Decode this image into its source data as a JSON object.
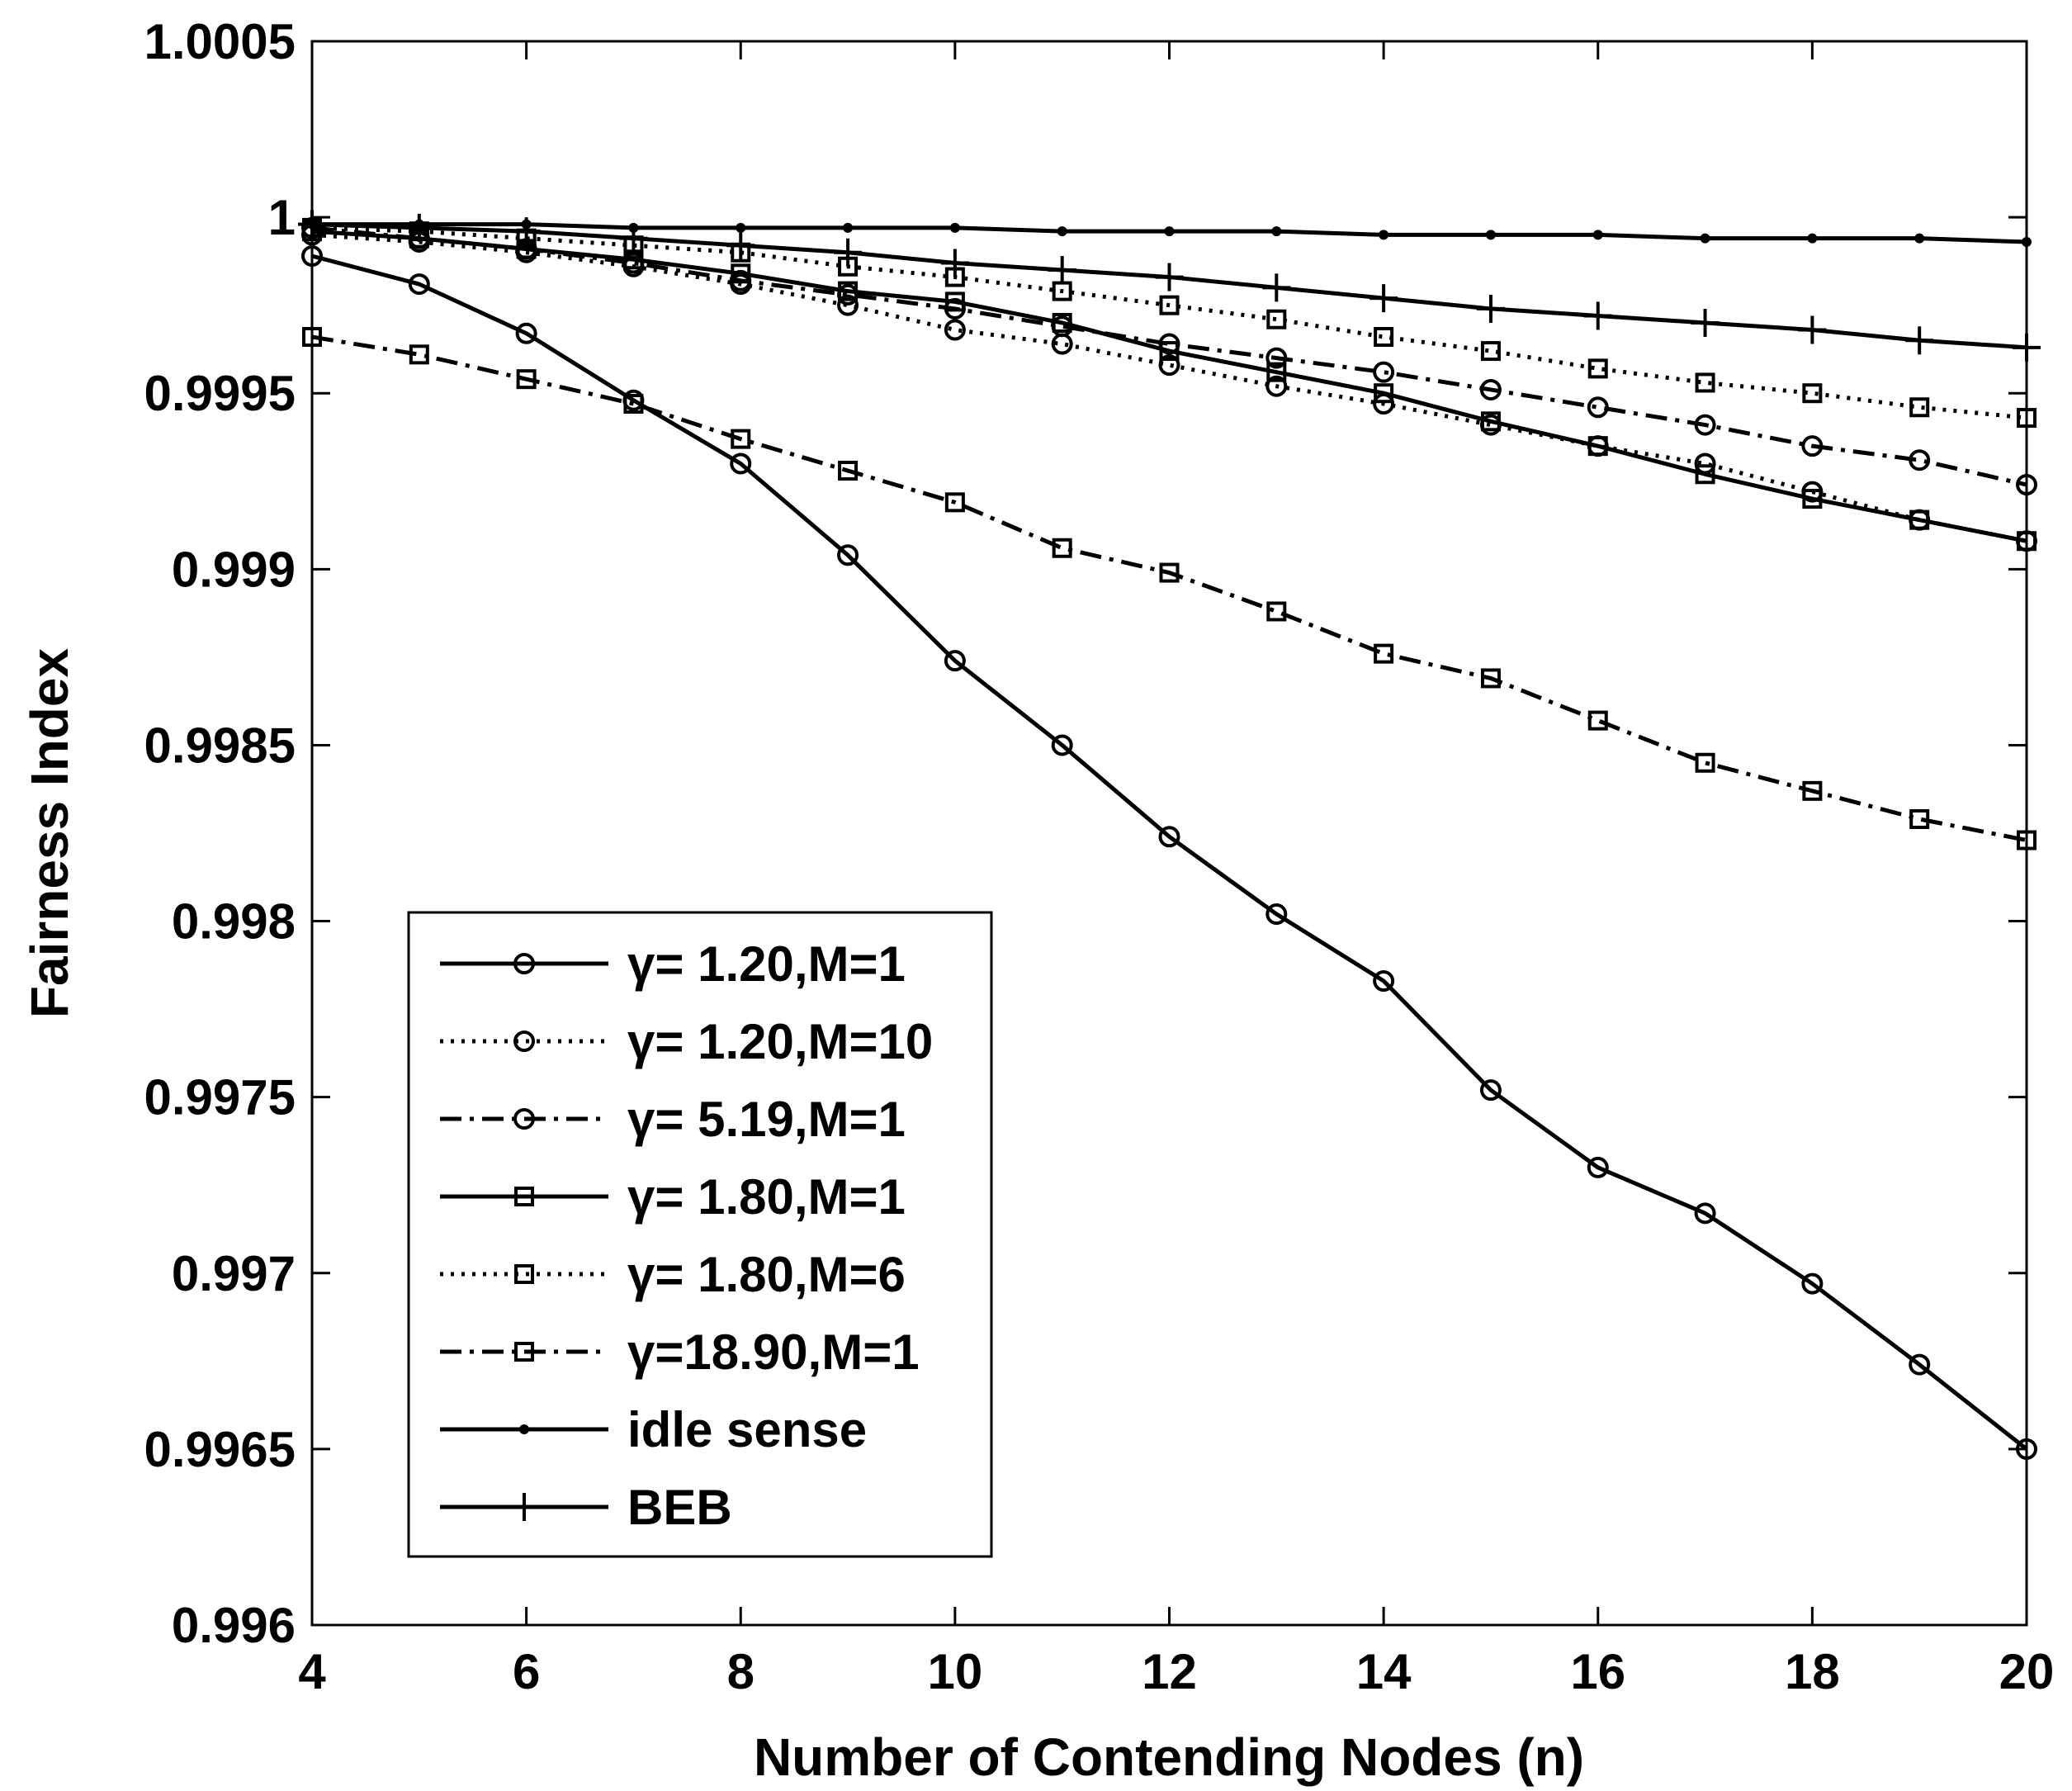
{
  "chart_data": {
    "type": "line",
    "title": "",
    "xlabel": "Number of Contending Nodes (n)",
    "ylabel": "Fairness Index",
    "xlim": [
      4,
      20
    ],
    "ylim": [
      0.996,
      1.0005
    ],
    "xticks": [
      4,
      6,
      8,
      10,
      12,
      14,
      16,
      18,
      20
    ],
    "xtick_labels": [
      "4",
      "6",
      "8",
      "10",
      "12",
      "14",
      "16",
      "18",
      "20"
    ],
    "yticks": [
      0.996,
      0.9965,
      0.997,
      0.9975,
      0.998,
      0.9985,
      0.999,
      0.9995,
      1.0,
      1.0005
    ],
    "ytick_labels": [
      "0.996",
      "0.9965",
      "0.997",
      "0.9975",
      "0.998",
      "0.9985",
      "0.999",
      "0.9995",
      "1",
      "1.0005"
    ],
    "grid": false,
    "legend_position": "bottom-left",
    "x": [
      4,
      5,
      6,
      7,
      8,
      9,
      10,
      11,
      12,
      13,
      14,
      15,
      16,
      17,
      18,
      19,
      20
    ],
    "series": [
      {
        "name": "γ= 1.20,M=1",
        "line_style": "solid",
        "marker": "circle",
        "values": [
          0.99989,
          0.99981,
          0.99967,
          0.99948,
          0.9993,
          0.99904,
          0.99874,
          0.9985,
          0.99824,
          0.99802,
          0.99783,
          0.99752,
          0.9973,
          0.99717,
          0.99697,
          0.99674,
          0.9965
        ]
      },
      {
        "name": "γ= 1.20,M=10",
        "line_style": "dotted",
        "marker": "circle",
        "values": [
          0.99995,
          0.99993,
          0.9999,
          0.99986,
          0.99981,
          0.99975,
          0.99968,
          0.99964,
          0.99958,
          0.99952,
          0.99947,
          0.99941,
          0.99935,
          0.9993,
          0.99922,
          0.99914,
          0.99908
        ]
      },
      {
        "name": "γ= 5.19,M=1",
        "line_style": "dashdot",
        "marker": "circle",
        "values": [
          0.99997,
          0.99994,
          0.99991,
          0.99987,
          0.99982,
          0.99978,
          0.99974,
          0.99969,
          0.99964,
          0.9996,
          0.99956,
          0.99951,
          0.99946,
          0.99941,
          0.99935,
          0.99931,
          0.99924
        ]
      },
      {
        "name": "γ= 1.80,M=1",
        "line_style": "solid",
        "marker": "square",
        "values": [
          0.99996,
          0.99994,
          0.99991,
          0.99988,
          0.99984,
          0.99979,
          0.99976,
          0.9997,
          0.99962,
          0.99956,
          0.9995,
          0.99942,
          0.99935,
          0.99927,
          0.9992,
          0.99914,
          0.99908
        ]
      },
      {
        "name": "γ= 1.80,M=6",
        "line_style": "dotted",
        "marker": "square",
        "values": [
          0.99997,
          0.99996,
          0.99994,
          0.99992,
          0.9999,
          0.99986,
          0.99983,
          0.99979,
          0.99975,
          0.99971,
          0.99966,
          0.99962,
          0.99957,
          0.99953,
          0.9995,
          0.99946,
          0.99943
        ]
      },
      {
        "name": "γ=18.90,M=1",
        "line_style": "dashdot",
        "marker": "square",
        "values": [
          0.99966,
          0.99961,
          0.99954,
          0.99947,
          0.99937,
          0.99928,
          0.99919,
          0.99906,
          0.99899,
          0.99888,
          0.99876,
          0.99869,
          0.99857,
          0.99845,
          0.99837,
          0.99829,
          0.99823
        ]
      },
      {
        "name": "idle sense",
        "line_style": "solid",
        "marker": "dot",
        "values": [
          0.99998,
          0.99998,
          0.99998,
          0.99997,
          0.99997,
          0.99997,
          0.99997,
          0.99996,
          0.99996,
          0.99996,
          0.99995,
          0.99995,
          0.99995,
          0.99994,
          0.99994,
          0.99994,
          0.99993
        ]
      },
      {
        "name": "BEB",
        "line_style": "solid",
        "marker": "plus",
        "values": [
          0.99998,
          0.99997,
          0.99996,
          0.99994,
          0.99992,
          0.9999,
          0.99987,
          0.99985,
          0.99983,
          0.9998,
          0.99977,
          0.99974,
          0.99972,
          0.9997,
          0.99968,
          0.99965,
          0.99963
        ]
      }
    ]
  }
}
